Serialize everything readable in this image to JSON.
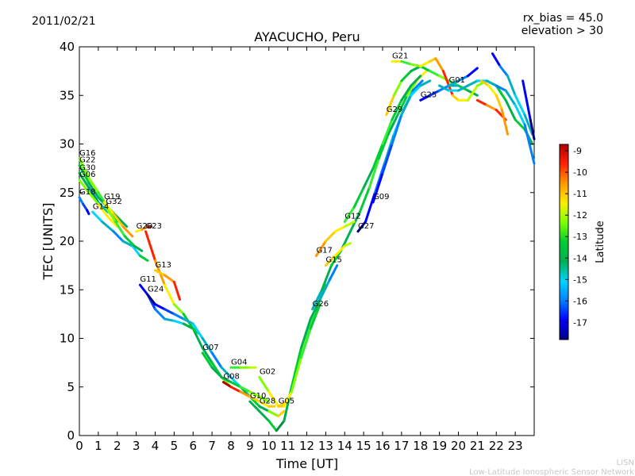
{
  "header": {
    "date": "2011/02/21",
    "rx_bias": "rx_bias = 45.0",
    "elevation": "elevation > 30"
  },
  "footer": {
    "org_short": "LISN",
    "org_long": "Low-Latitude Ionospheric Sensor Network"
  },
  "chart_data": {
    "type": "line",
    "title": "AYACUCHO, Peru",
    "xlabel": "Time [UT]",
    "ylabel": "TEC [UNITS]",
    "xlim": [
      0,
      24
    ],
    "ylim": [
      0,
      40
    ],
    "xticks": [
      "0",
      "1",
      "2",
      "3",
      "4",
      "5",
      "6",
      "7",
      "8",
      "9",
      "10",
      "11",
      "12",
      "13",
      "14",
      "15",
      "16",
      "17",
      "18",
      "19",
      "20",
      "21",
      "22",
      "23"
    ],
    "yticks": [
      "0",
      "5",
      "10",
      "15",
      "20",
      "25",
      "30",
      "35",
      "40"
    ],
    "colorbar": {
      "label": "Latitude",
      "range": [
        -17.8,
        -8.7
      ],
      "ticks": [
        "-9",
        "-10",
        "-11",
        "-12",
        "-13",
        "-14",
        "-15",
        "-16",
        "-17"
      ],
      "colors": [
        "#00007f",
        "#0000ff",
        "#0080ff",
        "#00d4ff",
        "#00b050",
        "#00cc33",
        "#7fff00",
        "#ffee00",
        "#ff9900",
        "#ff2200",
        "#b00000"
      ]
    },
    "series": [
      {
        "name": "G16",
        "x": [
          0.0,
          0.5,
          1.0,
          1.5,
          2.0,
          2.5
        ],
        "y": [
          28.5,
          26.5,
          25.0,
          23.5,
          22.5,
          21.5
        ],
        "colors": [
          "#7fff00",
          "#7fff00",
          "#33ee33",
          "#00cc33",
          "#00b050",
          "#00b050"
        ]
      },
      {
        "name": "G22",
        "x": [
          0.0,
          0.5,
          1.0,
          1.5,
          2.0
        ],
        "y": [
          27.8,
          26.0,
          24.5,
          23.5,
          22.0
        ],
        "colors": [
          "#00cc33",
          "#00b050",
          "#00b050",
          "#00cc33",
          "#00cc33"
        ]
      },
      {
        "name": "G30",
        "x": [
          0.0,
          0.5,
          1.0,
          1.5
        ],
        "y": [
          27.0,
          25.5,
          24.0,
          23.0
        ],
        "colors": [
          "#00b050",
          "#009090",
          "#00b0c0",
          "#00b0c0"
        ]
      },
      {
        "name": "G06",
        "x": [
          0.0,
          0.5,
          1.0,
          1.5,
          2.0
        ],
        "y": [
          26.3,
          25.0,
          23.8,
          22.5,
          21.5
        ],
        "colors": [
          "#7fff00",
          "#7fff00",
          "#ffee00",
          "#ffee00",
          "#ffcc00"
        ]
      },
      {
        "name": "G18",
        "x": [
          0.0,
          0.2,
          0.4,
          0.5
        ],
        "y": [
          24.5,
          23.8,
          23.2,
          22.8
        ],
        "colors": [
          "#0080ff",
          "#0040ff",
          "#0000ff",
          "#00007f"
        ]
      },
      {
        "name": "G14",
        "x": [
          0.7,
          1.2,
          1.8,
          2.3,
          2.8,
          3.2,
          3.6
        ],
        "y": [
          23.0,
          22.0,
          21.0,
          20.0,
          19.5,
          18.5,
          18.0
        ],
        "colors": [
          "#00d4ff",
          "#00b0c0",
          "#0080ff",
          "#00b0c0",
          "#00d4ff",
          "#00cc33",
          "#00b050"
        ]
      },
      {
        "name": "G19",
        "x": [
          1.3,
          1.8,
          2.3,
          2.8
        ],
        "y": [
          24.0,
          22.8,
          21.5,
          20.5
        ],
        "colors": [
          "#ffee00",
          "#ffcc00",
          "#ff9900",
          "#ffcc00"
        ]
      },
      {
        "name": "G32",
        "x": [
          1.4,
          1.9,
          2.4,
          2.9,
          3.3
        ],
        "y": [
          23.5,
          22.0,
          20.5,
          19.5,
          19.0
        ],
        "colors": [
          "#7fff00",
          "#33ee33",
          "#00cc33",
          "#00b050",
          "#00b050"
        ]
      },
      {
        "name": "G20",
        "x": [
          3.0,
          3.3,
          3.6,
          3.8
        ],
        "y": [
          21.0,
          21.2,
          21.5,
          21.5
        ],
        "colors": [
          "#ffee00",
          "#ff9900",
          "#ff2200",
          "#b00000"
        ]
      },
      {
        "name": "G23",
        "x": [
          3.5,
          4.0,
          4.5,
          5.0,
          5.5,
          6.0,
          6.5,
          7.0,
          7.5,
          8.0
        ],
        "y": [
          21.0,
          18.0,
          15.5,
          13.5,
          12.5,
          11.0,
          9.0,
          7.5,
          6.0,
          5.0
        ],
        "colors": [
          "#ff2200",
          "#ff9900",
          "#ffee00",
          "#7fff00",
          "#00cc33",
          "#00b050",
          "#00b050",
          "#00cc33",
          "#7fff00",
          "#ffee00"
        ]
      },
      {
        "name": "G13",
        "x": [
          4.0,
          4.5,
          5.0,
          5.3
        ],
        "y": [
          17.0,
          16.5,
          15.8,
          14.0
        ],
        "colors": [
          "#ffcc00",
          "#ff9900",
          "#ff2200",
          "#b00000"
        ]
      },
      {
        "name": "G11",
        "x": [
          3.2,
          3.6,
          4.0,
          4.5,
          5.0,
          5.5,
          6.0,
          6.3
        ],
        "y": [
          15.5,
          14.5,
          13.0,
          12.0,
          11.8,
          11.5,
          11.0,
          10.5
        ],
        "colors": [
          "#0000ff",
          "#0040ff",
          "#0080ff",
          "#00b0c0",
          "#00d4ff",
          "#00b050",
          "#00cc33",
          "#33ee33"
        ]
      },
      {
        "name": "G24",
        "x": [
          3.6,
          4.0,
          4.5,
          5.0,
          5.5,
          6.0,
          6.5,
          7.0,
          7.5,
          8.0,
          8.5,
          9.0,
          9.5
        ],
        "y": [
          14.5,
          13.5,
          13.0,
          12.5,
          12.0,
          11.5,
          10.0,
          8.5,
          7.0,
          6.0,
          5.0,
          4.0,
          3.0
        ],
        "colors": [
          "#00007f",
          "#0000ff",
          "#0040ff",
          "#0080ff",
          "#00b0c0",
          "#00d4ff",
          "#00b0c0",
          "#0080ff",
          "#00b0c0",
          "#00d4ff",
          "#00b050",
          "#00cc33",
          "#33ee33"
        ]
      },
      {
        "name": "G07",
        "x": [
          6.5,
          7.0,
          7.5,
          8.0,
          8.5,
          9.0,
          9.5,
          10.0
        ],
        "y": [
          8.5,
          7.0,
          6.0,
          5.5,
          5.0,
          4.5,
          4.0,
          3.5
        ],
        "colors": [
          "#00cc33",
          "#00b050",
          "#00b050",
          "#00cc33",
          "#33ee33",
          "#7fff00",
          "#7fff00",
          "#ffee00"
        ]
      },
      {
        "name": "G04",
        "x": [
          8.0,
          8.5,
          9.0,
          9.3
        ],
        "y": [
          7.0,
          7.0,
          7.0,
          7.0
        ],
        "colors": [
          "#33ee33",
          "#7fff00",
          "#bbff00",
          "#ffee00"
        ]
      },
      {
        "name": "G08",
        "x": [
          7.6,
          8.0,
          8.5,
          9.0,
          9.5,
          10.0,
          10.3
        ],
        "y": [
          5.5,
          5.0,
          4.5,
          4.0,
          3.5,
          3.0,
          3.0
        ],
        "colors": [
          "#b00000",
          "#ff2200",
          "#ff9900",
          "#ffcc00",
          "#ffee00",
          "#ffcc00",
          "#ff9900"
        ]
      },
      {
        "name": "G02",
        "x": [
          9.5,
          10.0,
          10.5,
          11.0,
          11.5,
          12.0,
          12.5,
          13.0
        ],
        "y": [
          6.0,
          4.5,
          3.0,
          3.5,
          7.0,
          10.0,
          13.0,
          15.5
        ],
        "colors": [
          "#7fff00",
          "#ffee00",
          "#ffcc00",
          "#ffee00",
          "#7fff00",
          "#33ee33",
          "#00cc33",
          "#00b050"
        ]
      },
      {
        "name": "G10",
        "x": [
          9.0,
          9.5,
          10.0,
          10.4,
          10.8,
          11.2,
          11.7,
          12.2,
          12.7,
          13.2,
          13.6
        ],
        "y": [
          3.5,
          2.5,
          1.5,
          0.5,
          1.5,
          5.0,
          9.0,
          12.0,
          14.0,
          16.0,
          17.5
        ],
        "colors": [
          "#00b050",
          "#00b050",
          "#00cc33",
          "#009040",
          "#00b050",
          "#00cc33",
          "#00b050",
          "#00b050",
          "#00b0c0",
          "#0080ff",
          "#0000ff"
        ]
      },
      {
        "name": "G28",
        "x": [
          9.5,
          10.0,
          10.5,
          10.8
        ],
        "y": [
          3.0,
          2.5,
          2.0,
          2.5
        ],
        "colors": [
          "#00b050",
          "#7fff00",
          "#ffcc00",
          "#ff9900"
        ]
      },
      {
        "name": "G05",
        "x": [
          10.5,
          10.8,
          11.2,
          11.7,
          12.2,
          12.7
        ],
        "y": [
          3.0,
          3.0,
          4.5,
          8.0,
          11.0,
          13.5
        ],
        "colors": [
          "#ffcc00",
          "#ffee00",
          "#7fff00",
          "#33ee33",
          "#00cc33",
          "#00b050"
        ]
      },
      {
        "name": "G26",
        "x": [
          12.3,
          12.8,
          13.3,
          13.8,
          14.3,
          14.8,
          15.3,
          15.8,
          16.3,
          16.8,
          17.3,
          17.8,
          18.3
        ],
        "y": [
          13.0,
          15.0,
          17.5,
          19.0,
          21.0,
          23.0,
          25.5,
          28.5,
          31.0,
          33.0,
          35.0,
          36.5,
          37.5
        ],
        "colors": [
          "#00b0c0",
          "#00b050",
          "#00cc33",
          "#00b050",
          "#00b050",
          "#00cc33",
          "#33ee33",
          "#00cc33",
          "#00b050",
          "#00cc33",
          "#7fff00",
          "#ffee00",
          "#ffcc00"
        ]
      },
      {
        "name": "G17",
        "x": [
          12.5,
          13.0,
          13.5,
          14.0,
          14.5
        ],
        "y": [
          18.5,
          20.0,
          21.0,
          21.5,
          22.0
        ],
        "colors": [
          "#ff9900",
          "#ffcc00",
          "#ffee00",
          "#bbff00",
          "#7fff00"
        ]
      },
      {
        "name": "G15",
        "x": [
          13.0,
          13.5,
          14.0,
          14.3
        ],
        "y": [
          17.5,
          18.5,
          19.5,
          19.8
        ],
        "colors": [
          "#ffcc00",
          "#ffee00",
          "#bbff00",
          "#7fff00"
        ]
      },
      {
        "name": "G12",
        "x": [
          14.0,
          14.5,
          15.0,
          15.5,
          16.0,
          16.5,
          17.0,
          17.5,
          18.0
        ],
        "y": [
          22.0,
          23.5,
          25.5,
          27.5,
          30.0,
          32.5,
          34.5,
          36.0,
          37.0
        ],
        "colors": [
          "#33ee33",
          "#00cc33",
          "#00b050",
          "#00cc33",
          "#33ee33",
          "#00cc33",
          "#00b050",
          "#00b050",
          "#00cc33"
        ]
      },
      {
        "name": "G27",
        "x": [
          14.7,
          15.1,
          15.6,
          16.1,
          16.6,
          17.1,
          17.6,
          18.1
        ],
        "y": [
          21.0,
          22.0,
          25.0,
          28.0,
          31.0,
          33.5,
          35.5,
          36.5
        ],
        "colors": [
          "#00007f",
          "#0000ff",
          "#0080ff",
          "#00b0c0",
          "#00d4ff",
          "#00b0c0",
          "#0080ff",
          "#00b0c0"
        ]
      },
      {
        "name": "G09",
        "x": [
          15.5,
          16.0,
          16.5,
          17.0,
          17.5,
          18.0,
          18.5
        ],
        "y": [
          24.0,
          27.0,
          30.0,
          33.0,
          35.0,
          36.0,
          36.5
        ],
        "colors": [
          "#0000ff",
          "#0040ff",
          "#0080ff",
          "#00b0c0",
          "#00d4ff",
          "#00b0c0",
          "#0080ff"
        ]
      },
      {
        "name": "G29",
        "x": [
          16.2,
          16.6,
          17.0,
          17.5,
          18.0,
          18.5,
          19.0,
          19.5,
          20.0,
          20.5,
          21.0
        ],
        "y": [
          33.0,
          35.0,
          36.5,
          37.5,
          38.0,
          37.5,
          37.0,
          36.5,
          36.0,
          35.5,
          35.0
        ],
        "colors": [
          "#ffcc00",
          "#7fff00",
          "#00cc33",
          "#00b050",
          "#00cc33",
          "#33ee33",
          "#7fff00",
          "#33ee33",
          "#00cc33",
          "#00b050",
          "#00b050"
        ]
      },
      {
        "name": "G21",
        "x": [
          16.5,
          17.0,
          17.5,
          18.0,
          18.5,
          18.8,
          19.2,
          19.7,
          20.0,
          20.5,
          21.0,
          21.5,
          22.0,
          22.5,
          23.0,
          23.5,
          23.9
        ],
        "y": [
          38.5,
          38.5,
          38.2,
          38.0,
          38.5,
          38.8,
          37.5,
          35.0,
          34.5,
          34.5,
          36.0,
          36.5,
          36.0,
          34.5,
          32.5,
          31.5,
          30.0
        ],
        "colors": [
          "#ffee00",
          "#33ee33",
          "#7fff00",
          "#ffee00",
          "#ffcc00",
          "#ff9900",
          "#ff2200",
          "#ffcc00",
          "#ffee00",
          "#bbff00",
          "#7fff00",
          "#33ee33",
          "#00cc33",
          "#00b050",
          "#00cc33",
          "#00b050",
          "#00cc33"
        ]
      },
      {
        "name": "G25",
        "x": [
          18.0,
          18.5,
          19.0,
          19.5,
          20.0
        ],
        "y": [
          34.5,
          35.0,
          35.5,
          36.0,
          36.0
        ],
        "colors": [
          "#0000ff",
          "#0040ff",
          "#0080ff",
          "#00b0c0",
          "#00d4ff"
        ]
      },
      {
        "name": "G01",
        "x": [
          19.5,
          20.0,
          20.5,
          21.0
        ],
        "y": [
          36.0,
          36.5,
          37.0,
          37.8
        ],
        "colors": [
          "#00b0c0",
          "#0080ff",
          "#0000ff",
          "#00007f"
        ]
      },
      {
        "name": "",
        "x": [
          19.0,
          19.5,
          20.0,
          20.5,
          21.0,
          21.5,
          22.0,
          22.5,
          23.0,
          23.5,
          24.0
        ],
        "y": [
          36.0,
          35.5,
          35.5,
          36.0,
          36.5,
          36.5,
          36.0,
          35.5,
          34.0,
          32.0,
          28.0
        ],
        "colors": [
          "#00b0c0",
          "#00d4ff",
          "#00b0c0",
          "#00b0c0",
          "#00d4ff",
          "#00b0c0",
          "#0080ff",
          "#00b0c0",
          "#00d4ff",
          "#0080ff",
          "#00b0c0"
        ]
      },
      {
        "name": "",
        "x": [
          21.8,
          22.2,
          22.6,
          23.0,
          23.5,
          23.9
        ],
        "y": [
          39.3,
          38.0,
          37.0,
          35.0,
          33.0,
          31.0
        ],
        "colors": [
          "#0000ff",
          "#0080ff",
          "#00b0c0",
          "#00d4ff",
          "#00b0c0",
          "#0080ff"
        ]
      },
      {
        "name": "",
        "x": [
          21.0,
          21.5,
          22.0,
          22.5
        ],
        "y": [
          34.5,
          34.0,
          33.5,
          32.5
        ],
        "colors": [
          "#ff2200",
          "#ff9900",
          "#ff2200",
          "#b00000"
        ]
      },
      {
        "name": "",
        "x": [
          21.2,
          21.6,
          22.0,
          22.3,
          22.6
        ],
        "y": [
          36.5,
          36.0,
          35.0,
          33.5,
          31.0
        ],
        "colors": [
          "#ffcc00",
          "#ffee00",
          "#ffcc00",
          "#ff9900",
          "#ff2200"
        ]
      },
      {
        "name": "",
        "x": [
          23.4,
          23.6,
          23.8,
          24.0
        ],
        "y": [
          36.5,
          34.5,
          32.5,
          30.5
        ],
        "colors": [
          "#0000ff",
          "#0000ff",
          "#00007f",
          "#00007f"
        ]
      }
    ]
  }
}
